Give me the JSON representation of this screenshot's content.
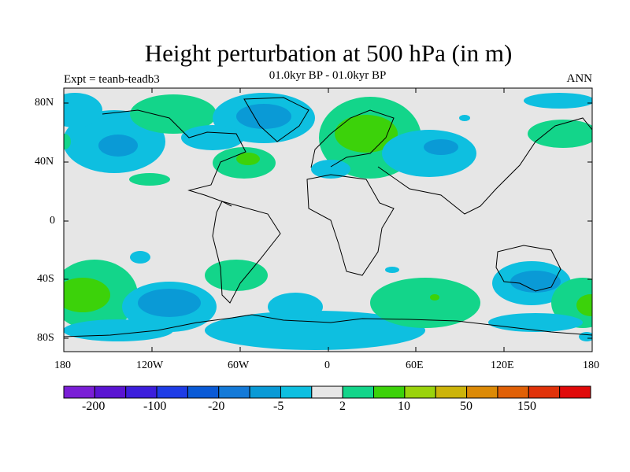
{
  "header": {
    "title": "Height perturbation at 500 hPa (in m)",
    "subtitle": "01.0kyr BP - 01.0kyr BP",
    "left_note": "Expt = teanb-teadb3",
    "right_note": "ANN"
  },
  "axes": {
    "lat_labels": [
      "80N",
      "40N",
      "0",
      "40S",
      "80S"
    ],
    "lon_labels": [
      "180",
      "120W",
      "60W",
      "0",
      "60E",
      "120E",
      "180"
    ]
  },
  "colorbar": {
    "colors": [
      "#7a1ed6",
      "#5a14d2",
      "#3c1edc",
      "#1e3ce6",
      "#0a5ad6",
      "#147ad8",
      "#0a9ad6",
      "#0ebfe0",
      "#e6e6e6",
      "#13d58a",
      "#3cd20a",
      "#9ad30c",
      "#ccb40a",
      "#dc8a06",
      "#e06006",
      "#e0320a",
      "#e00a0a"
    ],
    "tick_labels": [
      "-200",
      "-100",
      "-20",
      "-5",
      "2",
      "10",
      "50",
      "150"
    ]
  },
  "colors": {
    "land_background": "#e6e6e6",
    "neg_light": "#0ebfe0",
    "neg_mid": "#0a9ad6",
    "pos_light": "#13d58a",
    "pos_mid": "#3cd20a"
  }
}
